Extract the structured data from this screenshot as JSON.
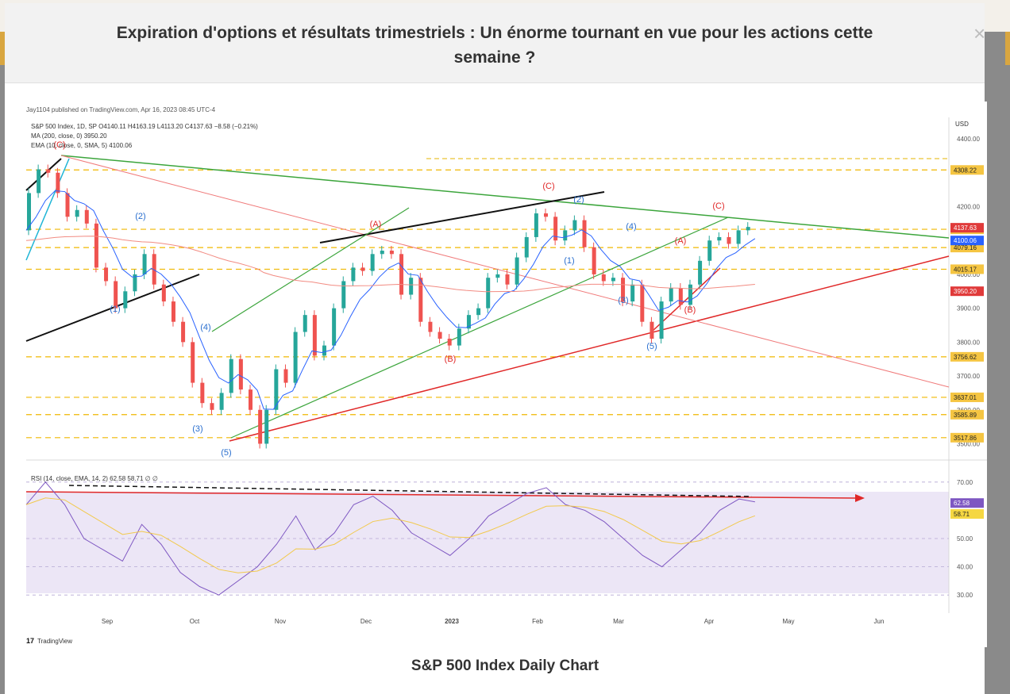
{
  "modal": {
    "title_line1": "Expiration d'options et résultats trimestriels : Un énorme tournant en vue pour les actions cette",
    "title_line2": "semaine ?",
    "close_glyph": "×",
    "caption": "S&P 500 Index Daily Chart"
  },
  "chart": {
    "publisher": "Jay1104 published on TradingView.com, Apr 16, 2023 08:45 UTC-4",
    "legend_main": "S&P 500 Index, 1D, SP  O4140.11  H4163.19  L4113.20  C4137.63  −8.58 (−0.21%)",
    "legend_ma": "MA (200, close, 0)  3950.20",
    "legend_ema": "EMA (10, close, 0, SMA, 5)  4100.06",
    "legend_rsi": "RSI (14, close, EMA, 14, 2)  62.58  58.71  ∅  ∅",
    "currency": "USD",
    "logo_text": "TradingView",
    "accent_colors": {
      "price_label": "#f5c542",
      "close_label": "#e03a3a",
      "ema_label": "#2962ff",
      "ma_label": "#e03a3a",
      "rsi_label": "#7e57c2"
    }
  },
  "chart_data": {
    "type": "line",
    "title": "",
    "price_axis": {
      "ylim": [
        3480,
        4440
      ],
      "ticks": [
        "4400.00",
        "4200.00",
        "4100.00",
        "4000.00",
        "3900.00",
        "3800.00",
        "3700.00",
        "3600.00",
        "3500.00"
      ]
    },
    "x_labels": [
      "Sep",
      "Oct",
      "Nov",
      "Dec",
      "2023",
      "Feb",
      "Mar",
      "Apr",
      "May",
      "Jun"
    ],
    "support_resistance_levels": [
      "4308.22",
      "4133.13",
      "4079.16",
      "4015.17",
      "3756.62",
      "3637.01",
      "3585.89",
      "3517.86"
    ],
    "current_price_labels": {
      "close": "4137.63",
      "ema": "4100.06",
      "ma": "3950.20"
    },
    "price_path": [
      [
        0,
        4130
      ],
      [
        3,
        4240
      ],
      [
        6,
        4310
      ],
      [
        9,
        4300
      ],
      [
        12,
        4240
      ],
      [
        15,
        4170
      ],
      [
        18,
        4190
      ],
      [
        21,
        4150
      ],
      [
        24,
        4020
      ],
      [
        27,
        3980
      ],
      [
        30,
        3900
      ],
      [
        33,
        3950
      ],
      [
        36,
        4000
      ],
      [
        39,
        4060
      ],
      [
        42,
        3970
      ],
      [
        45,
        3920
      ],
      [
        48,
        3860
      ],
      [
        51,
        3800
      ],
      [
        54,
        3680
      ],
      [
        57,
        3620
      ],
      [
        60,
        3600
      ],
      [
        63,
        3650
      ],
      [
        66,
        3750
      ],
      [
        69,
        3660
      ],
      [
        72,
        3600
      ],
      [
        74,
        3500
      ],
      [
        77,
        3600
      ],
      [
        80,
        3720
      ],
      [
        83,
        3680
      ],
      [
        86,
        3830
      ],
      [
        89,
        3880
      ],
      [
        92,
        3760
      ],
      [
        95,
        3790
      ],
      [
        98,
        3900
      ],
      [
        101,
        3980
      ],
      [
        104,
        4020
      ],
      [
        107,
        4010
      ],
      [
        110,
        4060
      ],
      [
        113,
        4070
      ],
      [
        116,
        4060
      ],
      [
        119,
        3940
      ],
      [
        122,
        3990
      ],
      [
        125,
        3860
      ],
      [
        128,
        3830
      ],
      [
        131,
        3810
      ],
      [
        134,
        3790
      ],
      [
        137,
        3840
      ],
      [
        140,
        3880
      ],
      [
        143,
        3900
      ],
      [
        146,
        3990
      ],
      [
        149,
        4000
      ],
      [
        152,
        3970
      ],
      [
        155,
        4050
      ],
      [
        158,
        4110
      ],
      [
        161,
        4180
      ],
      [
        164,
        4170
      ],
      [
        167,
        4100
      ],
      [
        170,
        4130
      ],
      [
        173,
        4160
      ],
      [
        176,
        4080
      ],
      [
        179,
        4000
      ],
      [
        182,
        3980
      ],
      [
        185,
        3990
      ],
      [
        188,
        3920
      ],
      [
        191,
        3970
      ],
      [
        194,
        3860
      ],
      [
        197,
        3810
      ],
      [
        200,
        3920
      ],
      [
        203,
        3960
      ],
      [
        206,
        3910
      ],
      [
        209,
        3970
      ],
      [
        212,
        4040
      ],
      [
        215,
        4100
      ],
      [
        218,
        4110
      ],
      [
        221,
        4090
      ],
      [
        224,
        4130
      ],
      [
        227,
        4140
      ]
    ],
    "series": [
      {
        "name": "MA (200, close, 0)",
        "values": [
          "3950.20"
        ]
      },
      {
        "name": "EMA (10, close, 0, SMA, 5)",
        "values": [
          "4100.06"
        ]
      }
    ],
    "rsi": {
      "ylim": [
        25,
        75
      ],
      "ticks": [
        "70.00",
        "50.00",
        "40.00",
        "30.00"
      ],
      "current": "62.58",
      "signal": "58.71"
    },
    "rsi_path": [
      [
        0,
        62
      ],
      [
        6,
        70
      ],
      [
        12,
        62
      ],
      [
        18,
        50
      ],
      [
        24,
        46
      ],
      [
        30,
        42
      ],
      [
        36,
        55
      ],
      [
        42,
        48
      ],
      [
        48,
        38
      ],
      [
        54,
        33
      ],
      [
        60,
        30
      ],
      [
        66,
        35
      ],
      [
        72,
        40
      ],
      [
        78,
        48
      ],
      [
        84,
        58
      ],
      [
        90,
        46
      ],
      [
        96,
        52
      ],
      [
        102,
        62
      ],
      [
        108,
        65
      ],
      [
        114,
        60
      ],
      [
        120,
        52
      ],
      [
        126,
        48
      ],
      [
        132,
        44
      ],
      [
        138,
        50
      ],
      [
        144,
        58
      ],
      [
        150,
        62
      ],
      [
        156,
        66
      ],
      [
        162,
        68
      ],
      [
        168,
        62
      ],
      [
        174,
        60
      ],
      [
        180,
        56
      ],
      [
        186,
        50
      ],
      [
        192,
        44
      ],
      [
        198,
        40
      ],
      [
        204,
        46
      ],
      [
        210,
        52
      ],
      [
        216,
        60
      ],
      [
        222,
        64
      ],
      [
        227,
        63
      ]
    ],
    "wave_labels": [
      "(C)",
      "(1)",
      "(2)",
      "(3)",
      "(4)",
      "(5)",
      "(A)",
      "(B)",
      "(C)",
      "(2)",
      "(1)",
      "(4)",
      "(3)",
      "(5)",
      "(A)",
      "(B)",
      "(C)"
    ]
  }
}
